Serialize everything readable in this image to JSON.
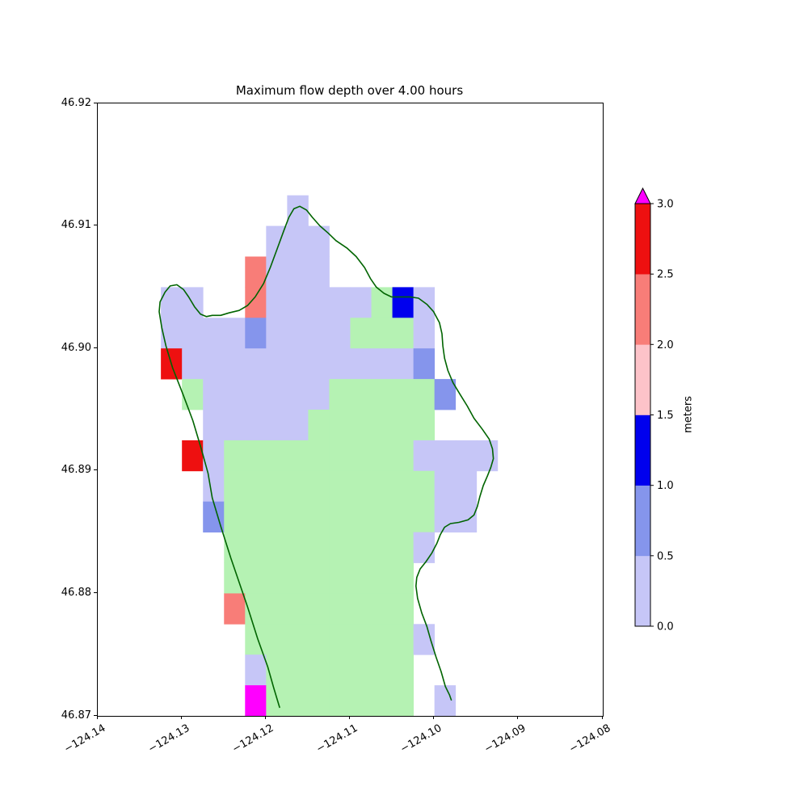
{
  "title": "Maximum flow depth over 4.00 hours",
  "colorbar": {
    "label": "meters",
    "tick_labels": [
      "0.0",
      "0.5",
      "1.0",
      "1.5",
      "2.0",
      "2.5",
      "3.0"
    ],
    "segment_colors": [
      "#c6c6f7",
      "#8595ec",
      "#0000ee",
      "#fdc3c9",
      "#f87d78",
      "#ee1010"
    ],
    "over_arrow_color": "#ff00ff"
  },
  "axes": {
    "x_tick_labels": [
      "−124.14",
      "−124.13",
      "−124.12",
      "−124.11",
      "−124.10",
      "−124.09",
      "−124.08"
    ],
    "y_tick_labels": [
      "46.92",
      "46.91",
      "46.90",
      "46.89",
      "46.88",
      "46.87"
    ]
  },
  "chart_data": {
    "type": "heatmap",
    "title": "Maximum flow depth over 4.00 hours",
    "units": "meters",
    "x_range": [
      -124.14,
      -124.08
    ],
    "y_range": [
      46.87,
      46.92
    ],
    "cell_size_deg": 0.0025,
    "grid_origin": {
      "lon": -124.1375,
      "lat_top": 46.9125
    },
    "cell_codes": {
      "L": {
        "depth_m": [
          0.0,
          0.5
        ],
        "color": "#c6c6f7"
      },
      "M": {
        "depth_m": [
          0.5,
          1.0
        ],
        "color": "#8595ec"
      },
      "B": {
        "depth_m": [
          1.0,
          1.5
        ],
        "color": "#0000ee"
      },
      "P": {
        "depth_m": [
          1.5,
          2.0
        ],
        "color": "#fdc3c9"
      },
      "S": {
        "depth_m": [
          2.0,
          2.5
        ],
        "color": "#f87d78"
      },
      "R": {
        "depth_m": [
          2.5,
          3.0
        ],
        "color": "#ee1010"
      },
      "X": {
        "depth_m": [
          3.0,
          null
        ],
        "color": "#ff00ff"
      },
      "G": {
        "depth_m": "dry-land",
        "color": "#b5f2b3"
      }
    },
    "grid_rows": [
      "........L.........",
      ".......LLL........",
      "......SLLL........",
      "..LL..SLLLLLGBL...",
      "..LLLLMLLLLGGGL...",
      "..RLLLLLLLLLLLM...",
      "...GLLLLLLGGGGGM..",
      "....LLLLLGGGGGG...",
      "...RLGGGGGGGGGLLLL",
      "....LGGGGGGGGGGLL.",
      "....MGGGGGGGGGGLL.",
      ".....GGGGGGGGGL...",
      ".....GGGGGGGGG....",
      ".....SGGGGGGGG....",
      "......GGGGGGGGL...",
      "......LGGGGGGG....",
      "......XGGGGGGG.L.."
    ],
    "coastline_color": "#006400",
    "coastline": [
      [
        -124.1184,
        46.8707
      ],
      [
        -124.1191,
        46.8723
      ],
      [
        -124.1198,
        46.874
      ],
      [
        -124.121,
        46.8763
      ],
      [
        -124.1222,
        46.8789
      ],
      [
        -124.1232,
        46.8809
      ],
      [
        -124.1242,
        46.8829
      ],
      [
        -124.1254,
        46.8855
      ],
      [
        -124.1264,
        46.8878
      ],
      [
        -124.1269,
        46.8898
      ],
      [
        -124.1277,
        46.8918
      ],
      [
        -124.1287,
        46.8941
      ],
      [
        -124.1299,
        46.8963
      ],
      [
        -124.1311,
        46.8984
      ],
      [
        -124.1319,
        46.9002
      ],
      [
        -124.1324,
        46.9017
      ],
      [
        -124.1327,
        46.903
      ],
      [
        -124.1326,
        46.9038
      ],
      [
        -124.132,
        46.9046
      ],
      [
        -124.1314,
        46.9051
      ],
      [
        -124.1306,
        46.9052
      ],
      [
        -124.1298,
        46.9048
      ],
      [
        -124.1292,
        46.9042
      ],
      [
        -124.1285,
        46.9034
      ],
      [
        -124.1278,
        46.9028
      ],
      [
        -124.1271,
        46.9026
      ],
      [
        -124.1264,
        46.9027
      ],
      [
        -124.1254,
        46.9027
      ],
      [
        -124.1244,
        46.9029
      ],
      [
        -124.1232,
        46.9031
      ],
      [
        -124.1222,
        46.9035
      ],
      [
        -124.1213,
        46.9042
      ],
      [
        -124.1203,
        46.9053
      ],
      [
        -124.1195,
        46.9066
      ],
      [
        -124.1187,
        46.9081
      ],
      [
        -124.1179,
        46.9096
      ],
      [
        -124.1173,
        46.9107
      ],
      [
        -124.1167,
        46.9114
      ],
      [
        -124.116,
        46.9116
      ],
      [
        -124.1152,
        46.9113
      ],
      [
        -124.1145,
        46.9107
      ],
      [
        -124.1136,
        46.91
      ],
      [
        -124.1126,
        46.9094
      ],
      [
        -124.1117,
        46.9088
      ],
      [
        -124.1104,
        46.9082
      ],
      [
        -124.1093,
        46.9075
      ],
      [
        -124.1083,
        46.9066
      ],
      [
        -124.1076,
        46.9057
      ],
      [
        -124.1069,
        46.905
      ],
      [
        -124.106,
        46.9045
      ],
      [
        -124.1051,
        46.9042
      ],
      [
        -124.104,
        46.9042
      ],
      [
        -124.1029,
        46.9042
      ],
      [
        -124.1019,
        46.9041
      ],
      [
        -124.1009,
        46.9036
      ],
      [
        -124.1001,
        46.903
      ],
      [
        -124.0994,
        46.9021
      ],
      [
        -124.0991,
        46.9012
      ],
      [
        -124.099,
        46.9002
      ],
      [
        -124.0988,
        46.8992
      ],
      [
        -124.0984,
        46.8982
      ],
      [
        -124.0978,
        46.8972
      ],
      [
        -124.097,
        46.8963
      ],
      [
        -124.0961,
        46.8953
      ],
      [
        -124.0953,
        46.8943
      ],
      [
        -124.0943,
        46.8934
      ],
      [
        -124.0935,
        46.8926
      ],
      [
        -124.0931,
        46.8918
      ],
      [
        -124.093,
        46.891
      ],
      [
        -124.0933,
        46.8903
      ],
      [
        -124.0937,
        46.8896
      ],
      [
        -124.0942,
        46.8888
      ],
      [
        -124.0946,
        46.8879
      ],
      [
        -124.0949,
        46.8871
      ],
      [
        -124.0953,
        46.8864
      ],
      [
        -124.096,
        46.886
      ],
      [
        -124.0971,
        46.8858
      ],
      [
        -124.0981,
        46.8857
      ],
      [
        -124.0988,
        46.8854
      ],
      [
        -124.0993,
        46.8848
      ],
      [
        -124.0997,
        46.8841
      ],
      [
        -124.1003,
        46.8833
      ],
      [
        -124.101,
        46.8826
      ],
      [
        -124.1017,
        46.882
      ],
      [
        -124.1021,
        46.8813
      ],
      [
        -124.1022,
        46.8806
      ],
      [
        -124.102,
        46.8796
      ],
      [
        -124.1015,
        46.8784
      ],
      [
        -124.1009,
        46.8773
      ],
      [
        -124.1004,
        46.8761
      ],
      [
        -124.0998,
        46.8748
      ],
      [
        -124.0992,
        46.8736
      ],
      [
        -124.0987,
        46.8724
      ],
      [
        -124.0982,
        46.8717
      ],
      [
        -124.098,
        46.8713
      ]
    ],
    "colorbar_ticks": [
      0.0,
      0.5,
      1.0,
      1.5,
      2.0,
      2.5,
      3.0
    ],
    "legend_position": "right",
    "grid_lines": false
  }
}
